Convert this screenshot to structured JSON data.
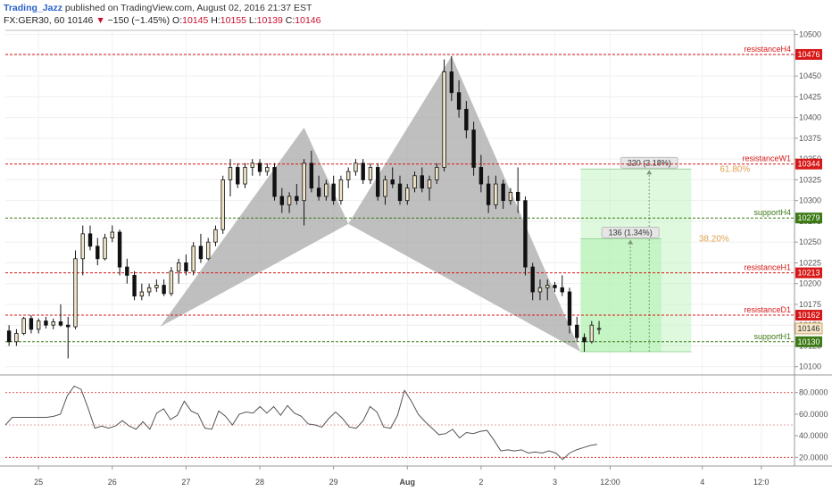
{
  "header": {
    "author": "Trading_Jazz",
    "published": "published on TradingView.com, August 02, 2016 21:37 EST",
    "symbol": "FX:GER30, 60",
    "last": "10146",
    "change_arrow": "▼",
    "change": "−150 (−1.45%)",
    "o_label": "O:",
    "o": "10145",
    "h_label": "H:",
    "h": "10155",
    "l_label": "L:",
    "l": "10139",
    "c_label": "C:",
    "c": "10146"
  },
  "colors": {
    "bull_body": "#f2e6c8",
    "bear_body": "#111111",
    "resistance": "#d81818",
    "support": "#3c7a16",
    "pattern_fill": "#a9a9a9",
    "projection_fill": "#b9f2b9",
    "fib_text": "#e0a050",
    "current_label": "#f5e6c9",
    "rsi_line": "#555555"
  },
  "chart_data": [
    {
      "type": "candlestick",
      "symbol": "FX:GER30",
      "interval": "60",
      "x_ticks": [
        "25",
        "26",
        "27",
        "28",
        "29",
        "Aug",
        "2",
        "3",
        "12:00",
        "4",
        "12:0"
      ],
      "y_ticks": [
        10100,
        10125,
        10150,
        10175,
        10200,
        10225,
        10250,
        10275,
        10300,
        10325,
        10350,
        10375,
        10400,
        10425,
        10450,
        10475,
        10500
      ],
      "y_tick_labels": [
        "10100",
        "10125",
        "10150",
        "10175",
        "10200",
        "10225",
        "10250",
        "10275",
        "10300",
        "10325",
        "10350",
        "10375",
        "10400",
        "10425",
        "10450",
        "10475",
        "10500"
      ],
      "ylim": [
        10090,
        10505
      ],
      "grid": true,
      "levels": [
        {
          "name": "resistanceH4",
          "value": 10476,
          "label": "10476",
          "kind": "resistance"
        },
        {
          "name": "resistanceW1",
          "value": 10344,
          "label": "10344",
          "kind": "resistance"
        },
        {
          "name": "supportH4",
          "value": 10279,
          "label": "10279",
          "kind": "support"
        },
        {
          "name": "resistanceH1",
          "value": 10213,
          "label": "10213",
          "kind": "resistance"
        },
        {
          "name": "resistanceD1",
          "value": 10162,
          "label": "10162",
          "kind": "resistance"
        },
        {
          "name": "supportH1",
          "value": 10130,
          "label": "10130",
          "kind": "support"
        }
      ],
      "current_price": {
        "value": 10146,
        "label": "10146"
      },
      "harmonic_pattern": {
        "points": [
          {
            "x": 26.1,
            "y": 10148
          },
          {
            "x": 28.05,
            "y": 10388
          },
          {
            "x": 28.65,
            "y": 10272
          },
          {
            "x": 30.05,
            "y": 10474
          },
          {
            "x": 31.8,
            "y": 10118
          }
        ]
      },
      "projection": {
        "start_price": 10118,
        "x_start": 31.8,
        "x_end": 33.3,
        "targets": [
          {
            "price": 10338,
            "fib": "61.80%",
            "label": "220 (2.18%)"
          },
          {
            "price": 10254,
            "fib": "38.20%",
            "label": "136 (1.34%)"
          }
        ]
      },
      "candles": [
        [
          24.05,
          10143,
          10150,
          10125,
          10130
        ],
        [
          24.15,
          10130,
          10145,
          10125,
          10140
        ],
        [
          24.25,
          10140,
          10160,
          10138,
          10158
        ],
        [
          24.35,
          10158,
          10162,
          10140,
          10145
        ],
        [
          24.45,
          10145,
          10158,
          10140,
          10155
        ],
        [
          24.55,
          10155,
          10160,
          10146,
          10150
        ],
        [
          24.65,
          10150,
          10158,
          10145,
          10154
        ],
        [
          24.75,
          10154,
          10175,
          10148,
          10150
        ],
        [
          24.85,
          10150,
          10160,
          10110,
          10148
        ],
        [
          24.95,
          10148,
          10240,
          10145,
          10230
        ],
        [
          25.05,
          10230,
          10270,
          10210,
          10260
        ],
        [
          25.15,
          10260,
          10270,
          10240,
          10245
        ],
        [
          25.25,
          10245,
          10255,
          10222,
          10230
        ],
        [
          25.35,
          10230,
          10260,
          10228,
          10255
        ],
        [
          25.45,
          10255,
          10270,
          10250,
          10262
        ],
        [
          25.55,
          10262,
          10265,
          10210,
          10220
        ],
        [
          25.65,
          10220,
          10230,
          10200,
          10210
        ],
        [
          25.75,
          10210,
          10215,
          10180,
          10185
        ],
        [
          25.85,
          10185,
          10200,
          10180,
          10190
        ],
        [
          25.95,
          10190,
          10200,
          10185,
          10195
        ],
        [
          26.05,
          10195,
          10205,
          10190,
          10198
        ],
        [
          26.15,
          10198,
          10205,
          10185,
          10188
        ],
        [
          26.25,
          10188,
          10220,
          10185,
          10215
        ],
        [
          26.35,
          10215,
          10230,
          10200,
          10225
        ],
        [
          26.45,
          10225,
          10235,
          10210,
          10215
        ],
        [
          26.55,
          10215,
          10250,
          10210,
          10245
        ],
        [
          26.65,
          10245,
          10260,
          10225,
          10230
        ],
        [
          26.75,
          10230,
          10255,
          10228,
          10250
        ],
        [
          26.85,
          10250,
          10270,
          10245,
          10265
        ],
        [
          26.95,
          10265,
          10330,
          10260,
          10325
        ],
        [
          27.05,
          10325,
          10350,
          10305,
          10340
        ],
        [
          27.15,
          10340,
          10345,
          10315,
          10320
        ],
        [
          27.25,
          10320,
          10345,
          10315,
          10340
        ],
        [
          27.35,
          10340,
          10350,
          10330,
          10345
        ],
        [
          27.45,
          10345,
          10350,
          10330,
          10335
        ],
        [
          27.55,
          10335,
          10345,
          10330,
          10340
        ],
        [
          27.65,
          10340,
          10345,
          10300,
          10305
        ],
        [
          27.75,
          10305,
          10315,
          10285,
          10295
        ],
        [
          27.85,
          10295,
          10310,
          10285,
          10305
        ],
        [
          27.95,
          10305,
          10320,
          10295,
          10300
        ],
        [
          28.05,
          10300,
          10350,
          10270,
          10345
        ],
        [
          28.15,
          10345,
          10360,
          10310,
          10315
        ],
        [
          28.25,
          10315,
          10330,
          10300,
          10305
        ],
        [
          28.35,
          10305,
          10325,
          10300,
          10320
        ],
        [
          28.45,
          10320,
          10330,
          10295,
          10300
        ],
        [
          28.55,
          10300,
          10330,
          10295,
          10325
        ],
        [
          28.65,
          10325,
          10340,
          10315,
          10335
        ],
        [
          28.75,
          10335,
          10350,
          10330,
          10345
        ],
        [
          28.85,
          10345,
          10350,
          10320,
          10325
        ],
        [
          28.95,
          10325,
          10345,
          10320,
          10340
        ],
        [
          29.05,
          10340,
          10345,
          10300,
          10305
        ],
        [
          29.15,
          10305,
          10330,
          10295,
          10325
        ],
        [
          29.25,
          10325,
          10340,
          10315,
          10320
        ],
        [
          29.35,
          10320,
          10330,
          10295,
          10300
        ],
        [
          29.45,
          10300,
          10320,
          10295,
          10315
        ],
        [
          29.55,
          10315,
          10335,
          10310,
          10330
        ],
        [
          29.65,
          10330,
          10340,
          10310,
          10315
        ],
        [
          29.75,
          10315,
          10330,
          10300,
          10325
        ],
        [
          29.85,
          10325,
          10345,
          10320,
          10340
        ],
        [
          29.95,
          10340,
          10470,
          10335,
          10455
        ],
        [
          30.05,
          10455,
          10474,
          10420,
          10430
        ],
        [
          30.15,
          10430,
          10445,
          10400,
          10410
        ],
        [
          30.25,
          10410,
          10420,
          10375,
          10385
        ],
        [
          30.35,
          10385,
          10395,
          10330,
          10340
        ],
        [
          30.45,
          10340,
          10355,
          10310,
          10320
        ],
        [
          30.55,
          10320,
          10330,
          10285,
          10295
        ],
        [
          30.65,
          10295,
          10330,
          10290,
          10320
        ],
        [
          30.75,
          10320,
          10325,
          10290,
          10300
        ],
        [
          30.85,
          10300,
          10315,
          10295,
          10310
        ],
        [
          30.95,
          10310,
          10340,
          10285,
          10300
        ],
        [
          31.05,
          10300,
          10305,
          10210,
          10220
        ],
        [
          31.15,
          10220,
          10225,
          10180,
          10190
        ],
        [
          31.25,
          10190,
          10205,
          10180,
          10195
        ],
        [
          31.35,
          10195,
          10205,
          10180,
          10198
        ],
        [
          31.45,
          10198,
          10202,
          10190,
          10195
        ],
        [
          31.55,
          10195,
          10210,
          10185,
          10190
        ],
        [
          31.65,
          10190,
          10195,
          10140,
          10150
        ],
        [
          31.75,
          10150,
          10160,
          10130,
          10135
        ],
        [
          31.85,
          10135,
          10140,
          10118,
          10130
        ],
        [
          31.95,
          10130,
          10155,
          10128,
          10150
        ],
        [
          32.05,
          10145,
          10155,
          10139,
          10146
        ]
      ]
    },
    {
      "type": "line",
      "name": "RSI",
      "y_ticks": [
        20,
        40,
        60,
        80
      ],
      "y_tick_labels": [
        "20.0000",
        "40.0000",
        "60.0000",
        "80.0000"
      ],
      "ylim": [
        12,
        93
      ],
      "bands": [
        80,
        50,
        20
      ],
      "values": [
        50,
        57,
        57,
        57,
        57,
        57,
        57,
        58,
        60,
        77,
        86,
        83,
        66,
        47,
        49,
        47,
        49,
        54,
        49,
        46,
        53,
        46,
        61,
        65,
        55,
        59,
        72,
        63,
        60,
        47,
        46,
        63,
        58,
        50,
        60,
        62,
        61,
        67,
        61,
        67,
        59,
        68,
        61,
        58,
        51,
        50,
        48,
        56,
        62,
        56,
        48,
        47,
        54,
        67,
        62,
        48,
        47,
        59,
        82,
        72,
        60,
        53,
        47,
        41,
        42,
        46,
        38,
        43,
        42,
        44,
        45,
        36,
        26,
        27,
        26,
        27,
        24,
        25,
        24,
        26,
        24,
        18,
        24,
        27,
        29,
        31,
        32
      ],
      "x_start": 24.0,
      "x_step": 0.0933
    }
  ]
}
